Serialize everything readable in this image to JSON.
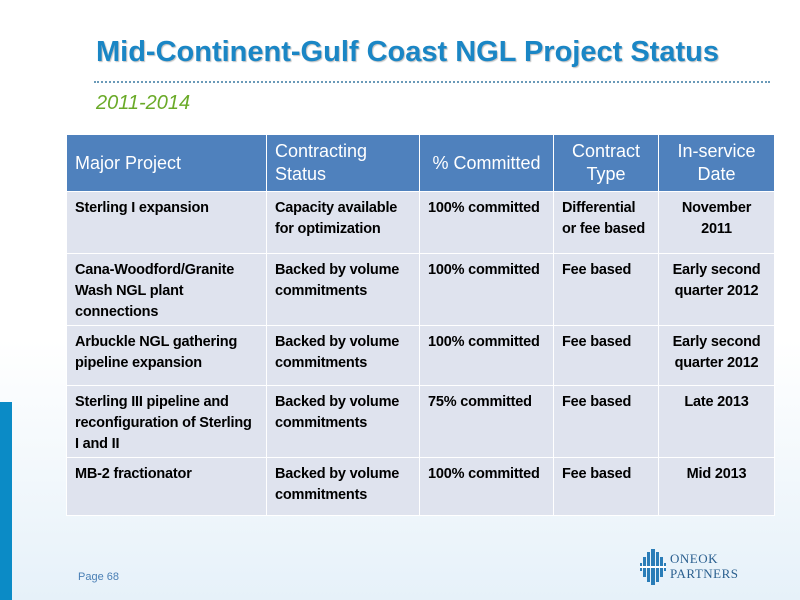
{
  "title": "Mid-Continent-Gulf Coast NGL Project Status",
  "subtitle": "2011-2014",
  "table": {
    "headers": [
      "Major Project",
      "Contracting Status",
      "% Committed",
      "Contract Type",
      "In-service Date"
    ],
    "rows": [
      [
        "Sterling I expansion",
        "Capacity available for optimization",
        "100% committed",
        "Differential or fee based",
        "November 2011"
      ],
      [
        "Cana-Woodford/Granite Wash NGL plant connections",
        "Backed by volume commitments",
        "100% committed",
        "Fee based",
        "Early second quarter 2012"
      ],
      [
        "Arbuckle NGL gathering pipeline expansion",
        "Backed by volume commitments",
        "100% committed",
        "Fee based",
        "Early second quarter 2012"
      ],
      [
        "Sterling III pipeline and reconfiguration of Sterling I and II",
        "Backed by volume commitments",
        "75% committed",
        "Fee based",
        "Late 2013"
      ],
      [
        "MB-2 fractionator",
        "Backed by volume commitments",
        "100% committed",
        "Fee based",
        "Mid 2013"
      ]
    ]
  },
  "footer": {
    "page": "Page 68",
    "logo_line1": "ONEOK",
    "logo_line2": "PARTNERS",
    "logo_icon": "oneok-partners-logo-icon"
  },
  "colors": {
    "title": "#1a86c5",
    "subtitle": "#6aaa28",
    "header_bg": "#4f81bd",
    "row_bg": "#dfe3ee",
    "left_bar": "#0b8bc6"
  }
}
